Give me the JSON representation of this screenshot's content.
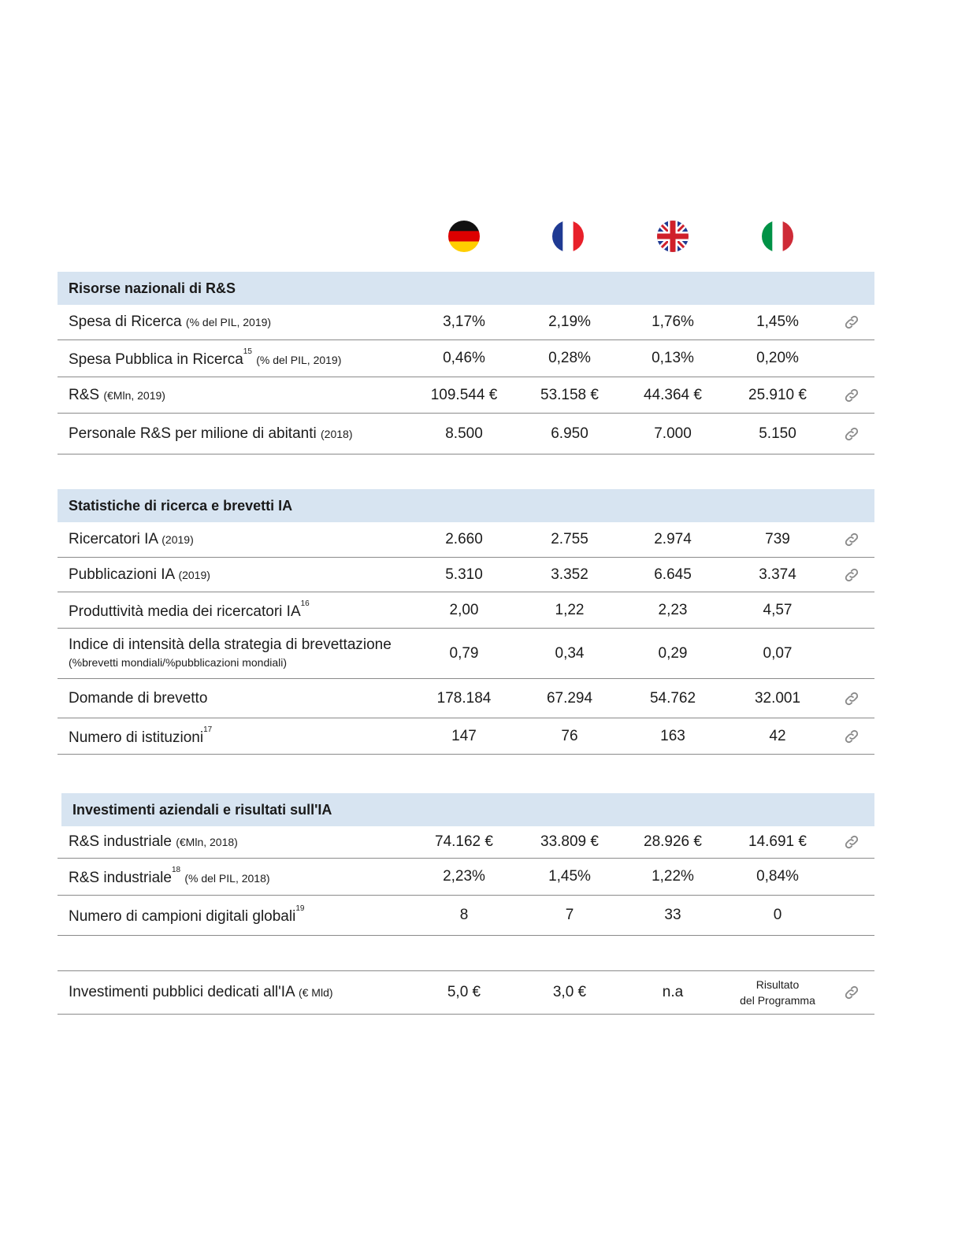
{
  "flags": [
    {
      "country": "Germania",
      "icon": "germany-flag-icon"
    },
    {
      "country": "Francia",
      "icon": "france-flag-icon"
    },
    {
      "country": "Regno Unito",
      "icon": "uk-flag-icon"
    },
    {
      "country": "Italia",
      "icon": "italy-flag-icon"
    }
  ],
  "sections": [
    {
      "title": "Risorse nazionali di R&S",
      "rows": [
        {
          "label": "Spesa di Ricerca",
          "note": "(% del PIL, 2019)",
          "sup": "",
          "values": [
            "3,17%",
            "2,19%",
            "1,76%",
            "1,45%"
          ],
          "link": true
        },
        {
          "label": "Spesa Pubblica in Ricerca",
          "note": "(% del PIL, 2019)",
          "sup": "15",
          "values": [
            "0,46%",
            "0,28%",
            "0,13%",
            "0,20%"
          ],
          "link": false
        },
        {
          "label": "R&S",
          "note": "(€Mln, 2019)",
          "sup": "",
          "values": [
            "109.544 €",
            "53.158 €",
            "44.364 €",
            "25.910 €"
          ],
          "link": true
        },
        {
          "label": "Personale R&S per milione di abitanti",
          "note": "(2018)",
          "sup": "",
          "values": [
            "8.500",
            "6.950",
            "7.000",
            "5.150"
          ],
          "link": true
        }
      ]
    },
    {
      "title": "Statistiche di ricerca e brevetti IA",
      "rows": [
        {
          "label": "Ricercatori IA",
          "note": "(2019)",
          "sup": "",
          "values": [
            "2.660",
            "2.755",
            "2.974",
            "739"
          ],
          "link": true
        },
        {
          "label": "Pubblicazioni IA",
          "note": "(2019)",
          "sup": "",
          "values": [
            "5.310",
            "3.352",
            "6.645",
            "3.374"
          ],
          "link": true
        },
        {
          "label": "Produttività media dei ricercatori IA",
          "note": "",
          "sup": "16",
          "values": [
            "2,00",
            "1,22",
            "2,23",
            "4,57"
          ],
          "link": false
        },
        {
          "label": "Indice di intensità della strategia di brevettazione",
          "note": "(%brevetti mondiali/%pubblicazioni mondiali)",
          "sup": "",
          "values": [
            "0,79",
            "0,34",
            "0,29",
            "0,07"
          ],
          "link": false
        },
        {
          "label": "Domande di brevetto",
          "note": "",
          "sup": "",
          "values": [
            "178.184",
            "67.294",
            "54.762",
            "32.001"
          ],
          "link": true
        },
        {
          "label": "Numero di  istituzioni",
          "note": "",
          "sup": "17",
          "values": [
            "147",
            "76",
            "163",
            "42"
          ],
          "link": true
        }
      ]
    },
    {
      "title": "Investimenti aziendali e risultati sull'IA",
      "rows": [
        {
          "label": "R&S industriale",
          "note": "(€Mln, 2018)",
          "sup": "",
          "values": [
            "74.162 €",
            "33.809 €",
            "28.926 €",
            "14.691 €"
          ],
          "link": true
        },
        {
          "label": "R&S industriale",
          "note": "(% del PIL, 2018)",
          "sup": "18",
          "values": [
            "2,23%",
            "1,45%",
            "1,22%",
            "0,84%"
          ],
          "link": false
        },
        {
          "label": "Numero di campioni digitali globali",
          "note": "",
          "sup": "19",
          "values": [
            "8",
            "7",
            "33",
            "0"
          ],
          "link": false
        }
      ]
    }
  ],
  "public_investment": {
    "label": "Investimenti pubblici dedicati all'IA",
    "note": "(€ Mld)",
    "values": [
      "5,0 €",
      "3,0 €",
      "n.a",
      "Risultato\ndel Programma"
    ],
    "link": true
  },
  "colors": {
    "section_header_bg": "#d7e4f1",
    "rule": "#8a8a8a",
    "link_icon": "#8a8a8a"
  }
}
